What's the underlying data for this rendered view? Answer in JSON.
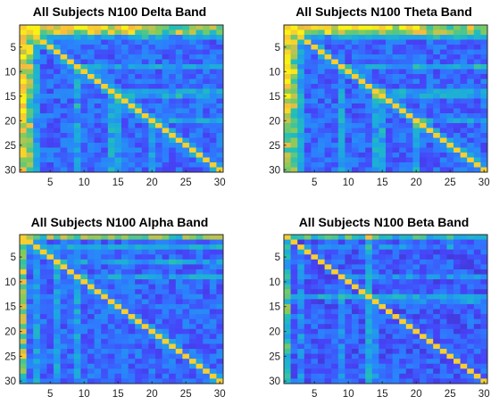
{
  "colormap": [
    "#3e26a8",
    "#4743f8",
    "#2c7ffe",
    "#1caadf",
    "#24bfb6",
    "#82cb5d",
    "#f9bb3e",
    "#f9fb0e"
  ],
  "chart_data": [
    {
      "type": "heatmap",
      "title": "All Subjects N100 Delta Band",
      "xticks": [
        5,
        10,
        15,
        20,
        25,
        30
      ],
      "yticks": [
        5,
        10,
        15,
        20,
        25,
        30
      ],
      "xlim": [
        0.5,
        30.5
      ],
      "ylim": [
        0.5,
        30.5
      ],
      "size": [
        30,
        30
      ],
      "band": "delta",
      "colorbar": false
    },
    {
      "type": "heatmap",
      "title": "All Subjects N100 Theta Band",
      "xticks": [
        5,
        10,
        15,
        20,
        25,
        30
      ],
      "yticks": [
        5,
        10,
        15,
        20,
        25,
        30
      ],
      "xlim": [
        0.5,
        30.5
      ],
      "ylim": [
        0.5,
        30.5
      ],
      "size": [
        30,
        30
      ],
      "band": "theta",
      "colorbar": false
    },
    {
      "type": "heatmap",
      "title": "All Subjects N100 Alpha Band",
      "xticks": [
        5,
        10,
        15,
        20,
        25,
        30
      ],
      "yticks": [
        5,
        10,
        15,
        20,
        25,
        30
      ],
      "xlim": [
        0.5,
        30.5
      ],
      "ylim": [
        0.5,
        30.5
      ],
      "size": [
        30,
        30
      ],
      "band": "alpha",
      "colorbar": false
    },
    {
      "type": "heatmap",
      "title": "All Subjects N100 Beta Band",
      "xticks": [
        5,
        10,
        15,
        20,
        25,
        30
      ],
      "yticks": [
        5,
        10,
        15,
        20,
        25,
        30
      ],
      "xlim": [
        0.5,
        30.5
      ],
      "ylim": [
        0.5,
        30.5
      ],
      "size": [
        30,
        30
      ],
      "band": "beta",
      "colorbar": false
    }
  ]
}
